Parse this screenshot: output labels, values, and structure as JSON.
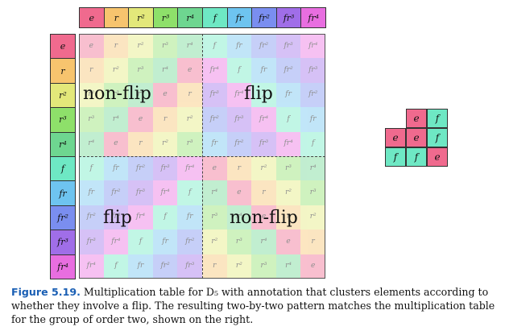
{
  "elements": [
    "e",
    "r",
    "r²",
    "r³",
    "r⁴",
    "f",
    "fr",
    "fr²",
    "fr³",
    "fr⁴"
  ],
  "colors": [
    "#f06a8e",
    "#f7c46e",
    "#e3e87a",
    "#8ee06a",
    "#6ed690",
    "#6ee8c4",
    "#6ec4f0",
    "#7a8ef0",
    "#a06ee8",
    "#e86ee0"
  ],
  "table": [
    [
      0,
      1,
      2,
      3,
      4,
      5,
      6,
      7,
      8,
      9
    ],
    [
      1,
      2,
      3,
      4,
      0,
      9,
      5,
      6,
      7,
      8
    ],
    [
      2,
      3,
      4,
      0,
      1,
      8,
      9,
      5,
      6,
      7
    ],
    [
      3,
      4,
      0,
      1,
      2,
      7,
      8,
      9,
      5,
      6
    ],
    [
      4,
      0,
      1,
      2,
      3,
      6,
      7,
      8,
      9,
      5
    ],
    [
      5,
      6,
      7,
      8,
      9,
      0,
      1,
      2,
      3,
      4
    ],
    [
      6,
      7,
      8,
      9,
      5,
      4,
      0,
      1,
      2,
      3
    ],
    [
      7,
      8,
      9,
      5,
      6,
      3,
      4,
      0,
      1,
      2
    ],
    [
      8,
      9,
      5,
      6,
      7,
      2,
      3,
      4,
      0,
      1
    ],
    [
      9,
      5,
      6,
      7,
      8,
      1,
      2,
      3,
      4,
      0
    ]
  ],
  "annotations": {
    "top_left": "non-flip",
    "top_right": "flip",
    "bottom_left": "flip",
    "bottom_right": "non-flip"
  },
  "small_table": {
    "header": [
      "e",
      "f"
    ],
    "rows": [
      {
        "label": "e",
        "cells": [
          "e",
          "f"
        ]
      },
      {
        "label": "f",
        "cells": [
          "f",
          "e"
        ]
      }
    ],
    "colors": {
      "e": "#f06a8e",
      "f": "#6ee8c4"
    }
  },
  "caption": {
    "figure_label": "Figure 5.19.",
    "text": "Multiplication table for D₅ with annotation that clusters elements according to whether they involve a flip. The resulting two-by-two pattern matches the multiplication table for the group of order two, shown on the right."
  }
}
